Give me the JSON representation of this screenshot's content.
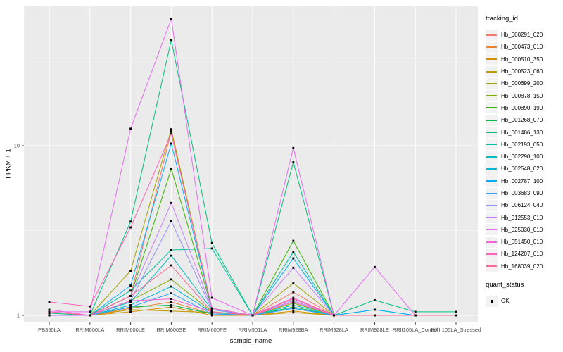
{
  "chart_data": {
    "type": "line",
    "title": "",
    "xlabel": "sample_name",
    "ylabel": "FPKM + 1",
    "y_scale": "log10",
    "y_axis_ticks": [
      {
        "label": "1",
        "value": 1
      },
      {
        "label": "10",
        "value": 10
      }
    ],
    "y_minor_gridlines": [
      3.162,
      31.62
    ],
    "ylim_approx": [
      0.87,
      66
    ],
    "grid": true,
    "panel_bg": "#EBEBEB",
    "grid_color": "#FFFFFF",
    "marker_color": "#000000",
    "axis_text_color": "#4D4D4D",
    "tick_color": "#333333",
    "legend_position": "right",
    "categories": [
      "PB350LA",
      "RRIM600LA",
      "RRIM600LE",
      "RRIM600SE",
      "RRIM600PE",
      "RRIM901LA",
      "RRIM928BA",
      "RRIM928LA",
      "RRIM928LE",
      "RRII105LA_Control",
      "RRII105LA_Stressed"
    ],
    "legend": {
      "color_title": "tracking_id",
      "shape_title": "quant_status",
      "shape_items": [
        {
          "label": "OK",
          "marker": "black-square"
        }
      ]
    },
    "series": [
      {
        "name": "Hb_000291_020",
        "color": "#F8766D",
        "values": [
          1.0,
          1.0,
          1.3,
          12.2,
          1.08,
          1.0,
          1.37,
          1.0,
          1.0,
          1.0,
          1.0
        ]
      },
      {
        "name": "Hb_000473_010",
        "color": "#EA8331",
        "values": [
          1.0,
          1.0,
          1.1,
          1.2,
          1.02,
          1.0,
          1.1,
          1.0,
          1.0,
          1.0,
          1.0
        ]
      },
      {
        "name": "Hb_000510_350",
        "color": "#D89000",
        "values": [
          1.0,
          1.0,
          1.05,
          1.12,
          1.0,
          1.0,
          1.06,
          1.0,
          1.0,
          1.0,
          1.0
        ]
      },
      {
        "name": "Hb_000523_060",
        "color": "#C09B00",
        "values": [
          1.0,
          1.0,
          1.08,
          1.06,
          1.04,
          1.0,
          1.04,
          1.0,
          1.0,
          1.0,
          1.0
        ]
      },
      {
        "name": "Hb_000699_200",
        "color": "#A3A500",
        "values": [
          1.0,
          1.0,
          1.83,
          12.5,
          1.1,
          1.0,
          1.55,
          1.0,
          1.0,
          1.0,
          1.0
        ]
      },
      {
        "name": "Hb_000878_150",
        "color": "#7CAE00",
        "values": [
          1.0,
          1.0,
          1.22,
          1.63,
          1.05,
          1.0,
          1.18,
          1.0,
          1.0,
          1.0,
          1.0
        ]
      },
      {
        "name": "Hb_000890_190",
        "color": "#39B600",
        "values": [
          1.0,
          1.0,
          1.3,
          7.3,
          1.1,
          1.0,
          2.75,
          1.0,
          1.0,
          1.0,
          1.0
        ]
      },
      {
        "name": "Hb_001268_070",
        "color": "#00BB4E",
        "values": [
          1.0,
          1.0,
          1.12,
          1.15,
          1.02,
          1.0,
          1.12,
          1.0,
          1.0,
          1.0,
          1.0
        ]
      },
      {
        "name": "Hb_001486_130",
        "color": "#00BF7D",
        "values": [
          1.03,
          1.0,
          3.57,
          42.0,
          2.67,
          1.0,
          8.0,
          1.0,
          1.23,
          1.05,
          1.05
        ]
      },
      {
        "name": "Hb_002193_050",
        "color": "#00C1A3",
        "values": [
          1.0,
          1.0,
          1.4,
          2.43,
          2.48,
          1.0,
          2.36,
          1.0,
          1.0,
          1.0,
          1.0
        ]
      },
      {
        "name": "Hb_002290_100",
        "color": "#00BFC4",
        "values": [
          1.0,
          1.0,
          1.2,
          2.25,
          1.08,
          1.0,
          1.15,
          1.0,
          1.0,
          1.0,
          1.0
        ]
      },
      {
        "name": "Hb_002548_020",
        "color": "#00BADE",
        "values": [
          1.0,
          1.0,
          1.15,
          1.48,
          1.04,
          1.0,
          1.1,
          1.0,
          1.08,
          1.0,
          1.0
        ]
      },
      {
        "name": "Hb_002787_100",
        "color": "#00B0F6",
        "values": [
          1.0,
          1.0,
          1.5,
          10.3,
          1.1,
          1.0,
          2.17,
          1.0,
          1.08,
          1.0,
          1.0
        ]
      },
      {
        "name": "Hb_003683_090",
        "color": "#35A2FF",
        "values": [
          1.0,
          1.0,
          1.12,
          1.35,
          1.02,
          1.0,
          1.1,
          1.0,
          1.0,
          1.0,
          1.0
        ]
      },
      {
        "name": "Hb_006124_040",
        "color": "#9590FF",
        "values": [
          1.0,
          1.0,
          1.22,
          3.6,
          1.08,
          1.0,
          1.22,
          1.0,
          1.0,
          1.0,
          1.0
        ]
      },
      {
        "name": "Hb_012553_010",
        "color": "#C77CFF",
        "values": [
          1.0,
          1.0,
          1.3,
          4.6,
          1.1,
          1.0,
          1.91,
          1.0,
          1.0,
          1.0,
          1.0
        ]
      },
      {
        "name": "Hb_025030_010",
        "color": "#E76BF3",
        "values": [
          1.05,
          1.05,
          12.6,
          56.0,
          1.27,
          1.0,
          9.7,
          1.0,
          1.93,
          1.0,
          1.0
        ]
      },
      {
        "name": "Hb_051450_010",
        "color": "#FA62DB",
        "values": [
          1.08,
          1.0,
          1.22,
          1.25,
          1.05,
          1.0,
          1.27,
          1.0,
          1.0,
          1.0,
          1.0
        ]
      },
      {
        "name": "Hb_124207_010",
        "color": "#FF62BC",
        "values": [
          1.2,
          1.13,
          3.3,
          11.8,
          1.1,
          1.0,
          1.2,
          1.0,
          1.0,
          1.0,
          1.0
        ]
      },
      {
        "name": "Hb_168039_020",
        "color": "#FF6A98",
        "values": [
          1.05,
          1.0,
          1.3,
          1.97,
          1.05,
          1.0,
          1.25,
          1.0,
          1.0,
          1.0,
          1.0
        ]
      }
    ]
  }
}
